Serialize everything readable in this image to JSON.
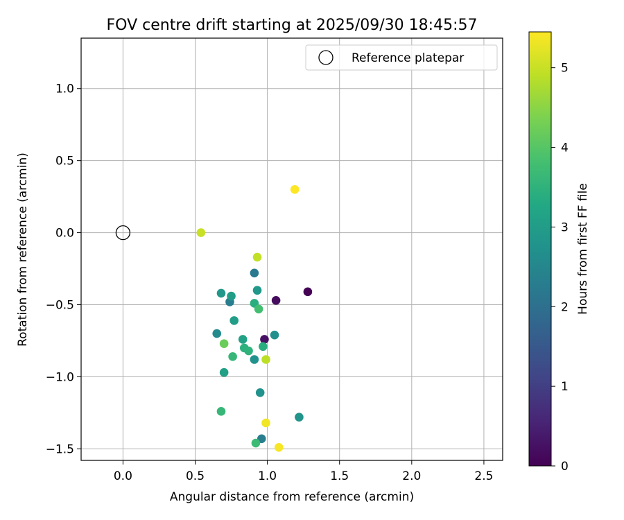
{
  "chart_data": {
    "type": "scatter",
    "title": "FOV centre drift starting at 2025/09/30 18:45:57",
    "xlabel": "Angular distance from reference (arcmin)",
    "ylabel": "Rotation from reference (arcmin)",
    "xlim": [
      -0.29,
      2.63
    ],
    "ylim": [
      -1.58,
      1.35
    ],
    "xticks": [
      0.0,
      0.5,
      1.0,
      1.5,
      2.0,
      2.5
    ],
    "xtick_labels": [
      "0.0",
      "0.5",
      "1.0",
      "1.5",
      "2.0",
      "2.5"
    ],
    "yticks": [
      -1.5,
      -1.0,
      -0.5,
      0.0,
      0.5,
      1.0
    ],
    "ytick_labels": [
      "−1.5",
      "−1.0",
      "−0.5",
      "0.0",
      "0.5",
      "1.0"
    ],
    "grid": true,
    "legend": {
      "position": "top-right",
      "entries": [
        "Reference platepar"
      ]
    },
    "reference": {
      "name": "Reference platepar",
      "x": 0.0,
      "y": 0.0
    },
    "colorbar": {
      "label": "Hours from first FF file",
      "range": [
        0,
        5.45
      ],
      "ticks": [
        0,
        1,
        2,
        3,
        4,
        5
      ],
      "tick_labels": [
        "0",
        "1",
        "2",
        "3",
        "4",
        "5"
      ]
    },
    "points": [
      {
        "x": 1.28,
        "y": -0.41,
        "hours": 0.02
      },
      {
        "x": 1.06,
        "y": -0.47,
        "hours": 0.15
      },
      {
        "x": 0.98,
        "y": -0.74,
        "hours": 0.25
      },
      {
        "x": 0.91,
        "y": -0.28,
        "hours": 2.2
      },
      {
        "x": 0.74,
        "y": -0.48,
        "hours": 2.3
      },
      {
        "x": 0.96,
        "y": -1.43,
        "hours": 2.3
      },
      {
        "x": 0.65,
        "y": -0.7,
        "hours": 2.6
      },
      {
        "x": 1.05,
        "y": -0.71,
        "hours": 2.7
      },
      {
        "x": 0.91,
        "y": -0.88,
        "hours": 2.75
      },
      {
        "x": 0.95,
        "y": -1.11,
        "hours": 2.75
      },
      {
        "x": 1.22,
        "y": -1.28,
        "hours": 2.8
      },
      {
        "x": 0.68,
        "y": -0.42,
        "hours": 2.9
      },
      {
        "x": 0.93,
        "y": -0.4,
        "hours": 2.9
      },
      {
        "x": 0.75,
        "y": -0.44,
        "hours": 3.0
      },
      {
        "x": 0.77,
        "y": -0.61,
        "hours": 3.0
      },
      {
        "x": 0.7,
        "y": -0.97,
        "hours": 3.05
      },
      {
        "x": 0.83,
        "y": -0.74,
        "hours": 3.1
      },
      {
        "x": 0.91,
        "y": -0.49,
        "hours": 3.4
      },
      {
        "x": 0.97,
        "y": -0.79,
        "hours": 3.4
      },
      {
        "x": 0.84,
        "y": -0.8,
        "hours": 3.45
      },
      {
        "x": 0.87,
        "y": -0.82,
        "hours": 3.5
      },
      {
        "x": 0.76,
        "y": -0.86,
        "hours": 3.6
      },
      {
        "x": 0.68,
        "y": -1.24,
        "hours": 3.6
      },
      {
        "x": 0.92,
        "y": -1.46,
        "hours": 3.7
      },
      {
        "x": 0.94,
        "y": -0.53,
        "hours": 3.8
      },
      {
        "x": 0.7,
        "y": -0.77,
        "hours": 4.2
      },
      {
        "x": 0.99,
        "y": -0.88,
        "hours": 4.9
      },
      {
        "x": 0.93,
        "y": -0.17,
        "hours": 4.95
      },
      {
        "x": 0.54,
        "y": 0.0,
        "hours": 5.0
      },
      {
        "x": 0.99,
        "y": -1.32,
        "hours": 5.35
      },
      {
        "x": 1.08,
        "y": -1.49,
        "hours": 5.4
      },
      {
        "x": 1.19,
        "y": 0.3,
        "hours": 5.45
      }
    ]
  }
}
